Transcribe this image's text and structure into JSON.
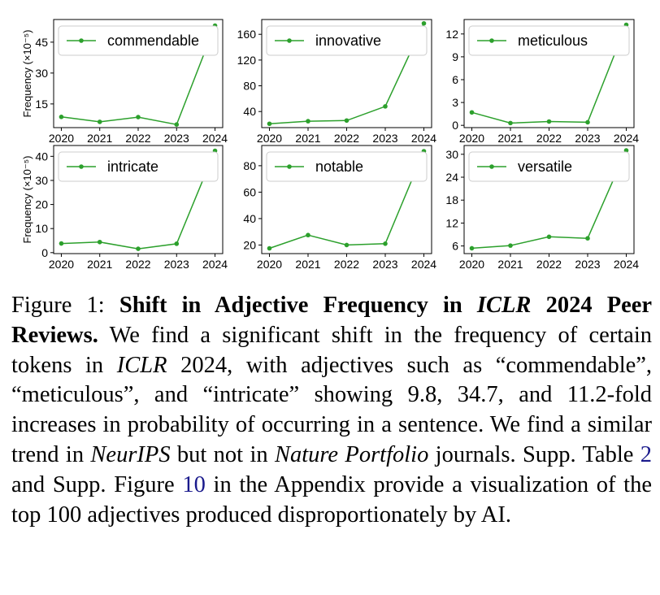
{
  "chart_data": [
    {
      "type": "line",
      "series_name": "commendable",
      "x": [
        2020,
        2021,
        2022,
        2023,
        2024
      ],
      "values": [
        8.7,
        6.3,
        8.6,
        5.0,
        53.0
      ],
      "ylim": [
        3.5,
        56
      ],
      "yticks": [
        "15",
        "30",
        "45"
      ],
      "ytick_values": [
        15,
        30,
        45
      ],
      "ylabel": "Frequency (×10⁻⁵)",
      "color": "#2ca02c"
    },
    {
      "type": "line",
      "series_name": "innovative",
      "x": [
        2020,
        2021,
        2022,
        2023,
        2024
      ],
      "values": [
        21,
        25,
        26,
        48,
        177
      ],
      "ylim": [
        15,
        183
      ],
      "yticks": [
        "40",
        "80",
        "120",
        "160"
      ],
      "ytick_values": [
        40,
        80,
        120,
        160
      ],
      "ylabel": "",
      "color": "#2ca02c"
    },
    {
      "type": "line",
      "series_name": "meticulous",
      "x": [
        2020,
        2021,
        2022,
        2023,
        2024
      ],
      "values": [
        1.7,
        0.3,
        0.5,
        0.4,
        13.2
      ],
      "ylim": [
        -0.3,
        13.9
      ],
      "yticks": [
        "0",
        "3",
        "6",
        "9",
        "12"
      ],
      "ytick_values": [
        0,
        3,
        6,
        9,
        12
      ],
      "ylabel": "",
      "color": "#2ca02c"
    },
    {
      "type": "line",
      "series_name": "intricate",
      "x": [
        2020,
        2021,
        2022,
        2023,
        2024
      ],
      "values": [
        3.8,
        4.4,
        1.6,
        3.7,
        42.3
      ],
      "ylim": [
        -0.4,
        44.5
      ],
      "yticks": [
        "0",
        "10",
        "20",
        "30",
        "40"
      ],
      "ytick_values": [
        0,
        10,
        20,
        30,
        40
      ],
      "ylabel": "Frequency (×10⁻⁵)",
      "color": "#2ca02c"
    },
    {
      "type": "line",
      "series_name": "notable",
      "x": [
        2020,
        2021,
        2022,
        2023,
        2024
      ],
      "values": [
        17.5,
        27.5,
        20.0,
        21.0,
        91.0
      ],
      "ylim": [
        13.5,
        95.3
      ],
      "yticks": [
        "20",
        "40",
        "60",
        "80"
      ],
      "ytick_values": [
        20,
        40,
        60,
        80
      ],
      "ylabel": "",
      "color": "#2ca02c"
    },
    {
      "type": "line",
      "series_name": "versatile",
      "x": [
        2020,
        2021,
        2022,
        2023,
        2024
      ],
      "values": [
        5.4,
        6.1,
        8.4,
        8.0,
        31.0
      ],
      "ylim": [
        4.0,
        32.3
      ],
      "yticks": [
        "6",
        "12",
        "18",
        "24",
        "30"
      ],
      "ytick_values": [
        6,
        12,
        18,
        24,
        30
      ],
      "ylabel": "",
      "color": "#2ca02c"
    }
  ],
  "xtick_labels": [
    "2020",
    "2021",
    "2022",
    "2023",
    "2024"
  ],
  "caption": {
    "label": "Figure 1:",
    "title": "Shift in Adjective Frequency in",
    "title_venue": "ICLR",
    "title_rest": "2024 Peer Reviews.",
    "s1": "We find a significant shift in the frequency of certain tokens in",
    "s1_venue": "ICLR",
    "s1_rest": "2024, with adjectives such as “commendable”, “meticulous”, and “intricate” showing 9.8, 34.7, and 11.2-fold increases in probability of occurring in a sentence. We find a similar trend in",
    "neurips": "NeurIPS",
    "but_not": "but not in",
    "nature": "Nature Portfolio",
    "journals": "journals. Supp. Table",
    "table_ref": "2",
    "and_supp": "and Supp. Figure",
    "figure_ref": "10",
    "tail": "in the Appendix provide a visualization of the top 100 adjectives produced disproportionately by AI."
  }
}
